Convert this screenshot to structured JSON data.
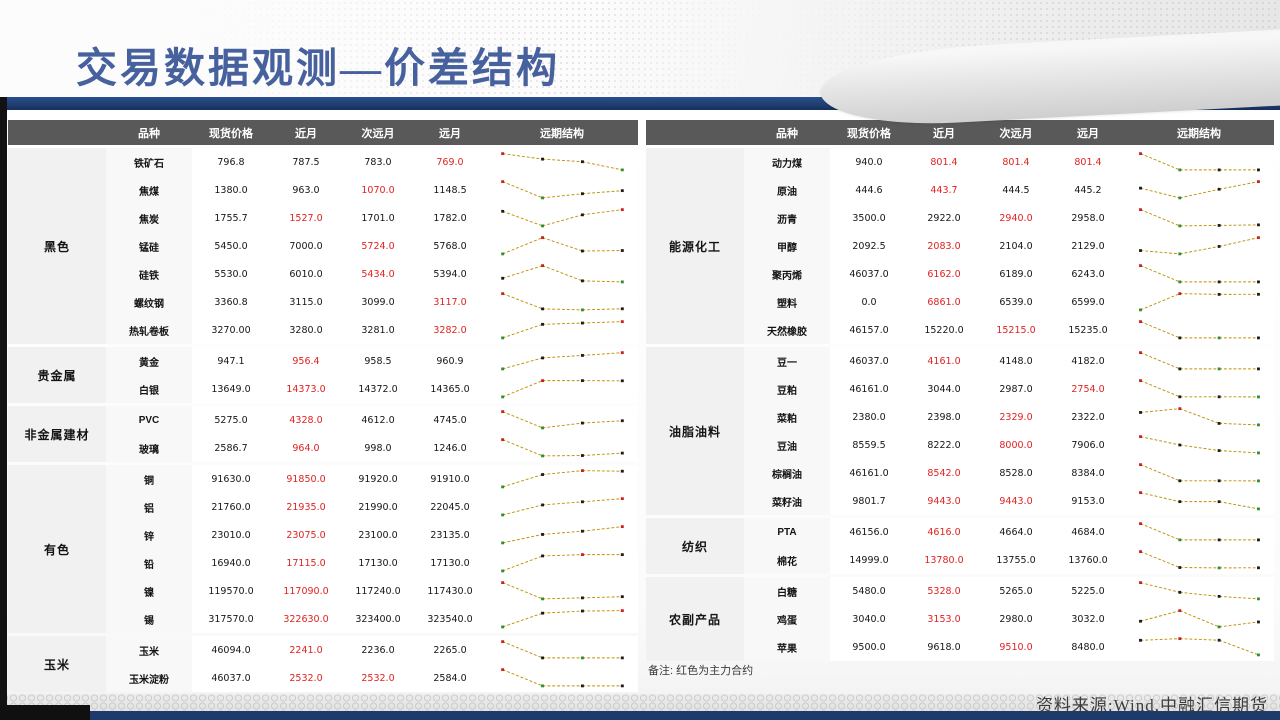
{
  "title": "交易数据观测—价差结构",
  "note": "备注: 红色为主力合约",
  "source": "资料来源:Wind,中融汇信期货",
  "columns": [
    "品种",
    "现货价格",
    "近月",
    "次远月",
    "远月",
    "远期结构"
  ],
  "colors": {
    "title_blue": "#46619e",
    "band_blue": "#1d3a6b",
    "header_gray": "#595959",
    "red_value": "#e02321",
    "spark_line": "#bf8f00",
    "marker_max": "#cc1f1c",
    "marker_min": "#2f8f2f",
    "marker_mid": "#1b1b1b"
  },
  "left_table": {
    "sections": [
      {
        "category": "黑色",
        "rows": [
          {
            "name": "铁矿石",
            "values": [
              "796.8",
              "787.5",
              "783.0",
              "769.0"
            ],
            "red": [
              3
            ]
          },
          {
            "name": "焦煤",
            "values": [
              "1380.0",
              "963.0",
              "1070.0",
              "1148.5"
            ],
            "red": [
              2
            ]
          },
          {
            "name": "焦炭",
            "values": [
              "1755.7",
              "1527.0",
              "1701.0",
              "1782.0"
            ],
            "red": [
              1
            ]
          },
          {
            "name": "锰硅",
            "values": [
              "5450.0",
              "7000.0",
              "5724.0",
              "5768.0"
            ],
            "red": [
              2
            ]
          },
          {
            "name": "硅铁",
            "values": [
              "5530.0",
              "6010.0",
              "5434.0",
              "5394.0"
            ],
            "red": [
              2
            ]
          },
          {
            "name": "螺纹钢",
            "values": [
              "3360.8",
              "3115.0",
              "3099.0",
              "3117.0"
            ],
            "red": [
              3
            ]
          },
          {
            "name": "热轧卷板",
            "values": [
              "3270.00",
              "3280.0",
              "3281.0",
              "3282.0"
            ],
            "red": [
              3
            ]
          }
        ]
      },
      {
        "category": "贵金属",
        "rows": [
          {
            "name": "黄金",
            "values": [
              "947.1",
              "956.4",
              "958.5",
              "960.9"
            ],
            "red": [
              1
            ]
          },
          {
            "name": "白银",
            "values": [
              "13649.0",
              "14373.0",
              "14372.0",
              "14365.0"
            ],
            "red": [
              1
            ]
          }
        ]
      },
      {
        "category": "非金属建材",
        "rows": [
          {
            "name": "PVC",
            "values": [
              "5275.0",
              "4328.0",
              "4612.0",
              "4745.0"
            ],
            "red": [
              1
            ]
          },
          {
            "name": "玻璃",
            "values": [
              "2586.7",
              "964.0",
              "998.0",
              "1246.0"
            ],
            "red": [
              1
            ]
          }
        ]
      },
      {
        "category": "有色",
        "rows": [
          {
            "name": "铜",
            "values": [
              "91630.0",
              "91850.0",
              "91920.0",
              "91910.0"
            ],
            "red": [
              1
            ]
          },
          {
            "name": "铝",
            "values": [
              "21760.0",
              "21935.0",
              "21990.0",
              "22045.0"
            ],
            "red": [
              1
            ]
          },
          {
            "name": "锌",
            "values": [
              "23010.0",
              "23075.0",
              "23100.0",
              "23135.0"
            ],
            "red": [
              1
            ]
          },
          {
            "name": "铅",
            "values": [
              "16940.0",
              "17115.0",
              "17130.0",
              "17130.0"
            ],
            "red": [
              1
            ]
          },
          {
            "name": "镍",
            "values": [
              "119570.0",
              "117090.0",
              "117240.0",
              "117430.0"
            ],
            "red": [
              1
            ]
          },
          {
            "name": "锡",
            "values": [
              "317570.0",
              "322630.0",
              "323400.0",
              "323540.0"
            ],
            "red": [
              1
            ]
          }
        ]
      },
      {
        "category": "玉米",
        "rows": [
          {
            "name": "玉米",
            "values": [
              "46094.0",
              "2241.0",
              "2236.0",
              "2265.0"
            ],
            "red": [
              1
            ]
          },
          {
            "name": "玉米淀粉",
            "values": [
              "46037.0",
              "2532.0",
              "2532.0",
              "2584.0"
            ],
            "red": [
              1,
              2
            ]
          }
        ]
      }
    ]
  },
  "right_table": {
    "sections": [
      {
        "category": "能源化工",
        "rows": [
          {
            "name": "动力煤",
            "values": [
              "940.0",
              "801.4",
              "801.4",
              "801.4"
            ],
            "red": [
              1,
              2,
              3
            ]
          },
          {
            "name": "原油",
            "values": [
              "444.6",
              "443.7",
              "444.5",
              "445.2"
            ],
            "red": [
              1
            ]
          },
          {
            "name": "沥青",
            "values": [
              "3500.0",
              "2922.0",
              "2940.0",
              "2958.0"
            ],
            "red": [
              2
            ]
          },
          {
            "name": "甲醇",
            "values": [
              "2092.5",
              "2083.0",
              "2104.0",
              "2129.0"
            ],
            "red": [
              1
            ]
          },
          {
            "name": "聚丙烯",
            "values": [
              "46037.0",
              "6162.0",
              "6189.0",
              "6243.0"
            ],
            "red": [
              1
            ]
          },
          {
            "name": "塑料",
            "values": [
              "0.0",
              "6861.0",
              "6539.0",
              "6599.0"
            ],
            "red": [
              1
            ]
          },
          {
            "name": "天然橡胶",
            "values": [
              "46157.0",
              "15220.0",
              "15215.0",
              "15235.0"
            ],
            "red": [
              2
            ]
          }
        ]
      },
      {
        "category": "油脂油料",
        "rows": [
          {
            "name": "豆一",
            "values": [
              "46037.0",
              "4161.0",
              "4148.0",
              "4182.0"
            ],
            "red": [
              1
            ]
          },
          {
            "name": "豆粕",
            "values": [
              "46161.0",
              "3044.0",
              "2987.0",
              "2754.0"
            ],
            "red": [
              3
            ]
          },
          {
            "name": "菜粕",
            "values": [
              "2380.0",
              "2398.0",
              "2329.0",
              "2322.0"
            ],
            "red": [
              2
            ]
          },
          {
            "name": "豆油",
            "values": [
              "8559.5",
              "8222.0",
              "8000.0",
              "7906.0"
            ],
            "red": [
              2
            ]
          },
          {
            "name": "棕榈油",
            "values": [
              "46161.0",
              "8542.0",
              "8528.0",
              "8384.0"
            ],
            "red": [
              1
            ]
          },
          {
            "name": "菜籽油",
            "values": [
              "9801.7",
              "9443.0",
              "9443.0",
              "9153.0"
            ],
            "red": [
              1,
              2
            ]
          }
        ]
      },
      {
        "category": "纺织",
        "rows": [
          {
            "name": "PTA",
            "values": [
              "46156.0",
              "4616.0",
              "4664.0",
              "4684.0"
            ],
            "red": [
              1
            ]
          },
          {
            "name": "棉花",
            "values": [
              "14999.0",
              "13780.0",
              "13755.0",
              "13760.0"
            ],
            "red": [
              1
            ]
          }
        ]
      },
      {
        "category": "农副产品",
        "rows": [
          {
            "name": "白糖",
            "values": [
              "5480.0",
              "5328.0",
              "5265.0",
              "5225.0"
            ],
            "red": [
              1
            ]
          },
          {
            "name": "鸡蛋",
            "values": [
              "3040.0",
              "3153.0",
              "2980.0",
              "3032.0"
            ],
            "red": [
              1
            ]
          },
          {
            "name": "苹果",
            "values": [
              "9500.0",
              "9618.0",
              "9510.0",
              "8480.0"
            ],
            "red": [
              2
            ]
          }
        ]
      }
    ]
  }
}
